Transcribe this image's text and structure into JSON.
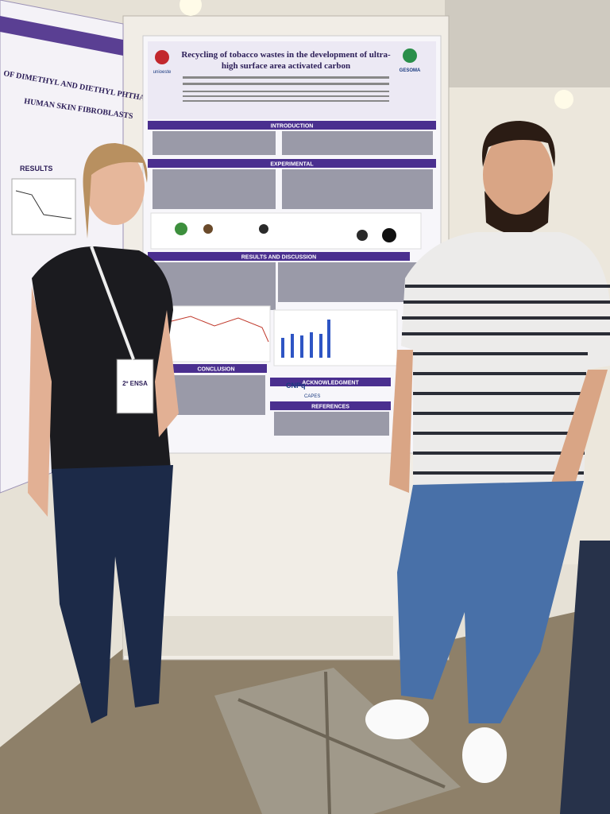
{
  "poster": {
    "title": [
      "Recycling of tobacco wastes in the development of ultra-",
      "high surface area activated carbon"
    ],
    "sections": [
      "INTRODUCTION",
      "EXPERIMENTAL",
      "RESULTS AND DISCUSSION",
      "CONCLUSION",
      "ACKNOWLEDGMENT",
      "REFERENCES"
    ],
    "logos": [
      "unioeste",
      "GESOMA",
      "CNPq",
      "CAPES"
    ]
  },
  "left_poster": {
    "title_lines": [
      "OF DIMETHYL AND DIETHYL PHTHALATES ON THE",
      "HUMAN SKIN FIBROBLASTS"
    ],
    "section": "RESULTS"
  },
  "badge": "2º ENSA"
}
